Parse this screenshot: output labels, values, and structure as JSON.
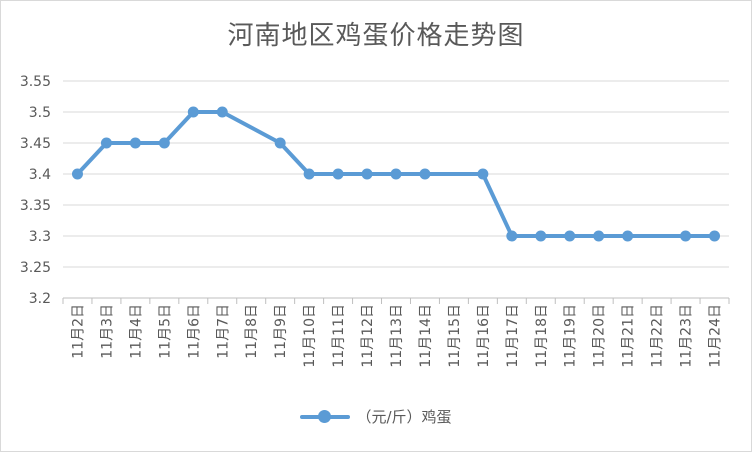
{
  "chart_data": {
    "type": "line",
    "title": "河南地区鸡蛋价格走势图",
    "categories": [
      "11月2日",
      "11月3日",
      "11月4日",
      "11月5日",
      "11月6日",
      "11月7日",
      "11月8日",
      "11月9日",
      "11月10日",
      "11月11日",
      "11月12日",
      "11月13日",
      "11月14日",
      "11月15日",
      "11月16日",
      "11月17日",
      "11月18日",
      "11月19日",
      "11月20日",
      "11月21日",
      "11月22日",
      "11月23日",
      "11月24日"
    ],
    "series": [
      {
        "name": "（元/斤）鸡蛋",
        "color": "#5b9bd5",
        "values": [
          3.4,
          3.45,
          3.45,
          3.45,
          3.5,
          3.5,
          null,
          3.45,
          3.4,
          3.4,
          3.4,
          3.4,
          3.4,
          null,
          3.4,
          3.3,
          3.3,
          3.3,
          3.3,
          3.3,
          null,
          3.3,
          3.3
        ]
      }
    ],
    "yticks": [
      "3.2",
      "3.25",
      "3.3",
      "3.35",
      "3.4",
      "3.45",
      "3.5",
      "3.55"
    ],
    "ylim": [
      3.2,
      3.55
    ],
    "grid": true,
    "legend_position": "bottom",
    "gap_handling": "connect"
  }
}
